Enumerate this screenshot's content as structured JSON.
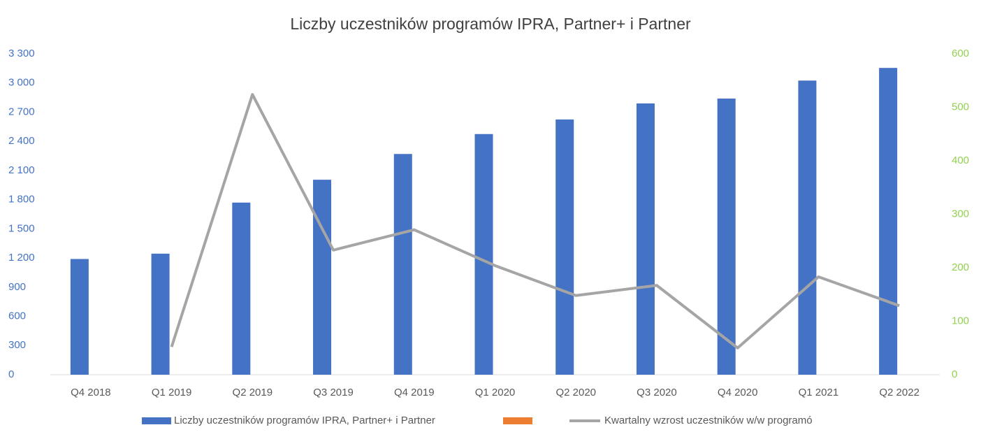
{
  "chart_data": {
    "type": "bar_line",
    "title": "Liczby uczestników programów IPRA, Partner+ i Partner",
    "categories": [
      "Q4 2018",
      "Q1 2019",
      "Q2 2019",
      "Q3 2019",
      "Q4 2019",
      "Q1 2020",
      "Q2 2020",
      "Q3 2020",
      "Q4 2020",
      "Q1 2021",
      "Q2 2022"
    ],
    "series": [
      {
        "name": "Liczby uczestników programów IPRA, Partner+ i Partner",
        "type": "bar",
        "color": "#4472c4",
        "values": [
          1190,
          1245,
          1770,
          2005,
          2270,
          2475,
          2625,
          2790,
          2840,
          3025,
          3155
        ]
      },
      {
        "name": null,
        "type": "bar",
        "color": "#ed7d31",
        "values": [
          null,
          null,
          null,
          null,
          null,
          null,
          null,
          null,
          null,
          null,
          null
        ]
      },
      {
        "name": "Kwartalny wzrost uczestników w/w programó",
        "type": "line",
        "axis": "y2",
        "color": "#a5a5a5",
        "values": [
          null,
          52,
          524,
          233,
          271,
          204,
          148,
          167,
          50,
          183,
          129
        ]
      }
    ],
    "ylim": [
      0,
      3300
    ],
    "yticks": [
      0,
      300,
      600,
      900,
      {
        "value": 1200,
        "label": "1 200"
      },
      {
        "value": 1500,
        "label": "1 500"
      },
      {
        "value": 1800,
        "label": "1 800"
      },
      {
        "value": 2100,
        "label": "2 100"
      },
      {
        "value": 2400,
        "label": "2 400"
      },
      {
        "value": 2700,
        "label": "2 700"
      },
      {
        "value": 3000,
        "label": "3 000"
      },
      {
        "value": 3300,
        "label": "3 300"
      }
    ],
    "y2lim": [
      0,
      600
    ],
    "y2ticks": [
      0,
      100,
      200,
      300,
      400,
      500,
      600
    ],
    "legend": "bottom"
  }
}
